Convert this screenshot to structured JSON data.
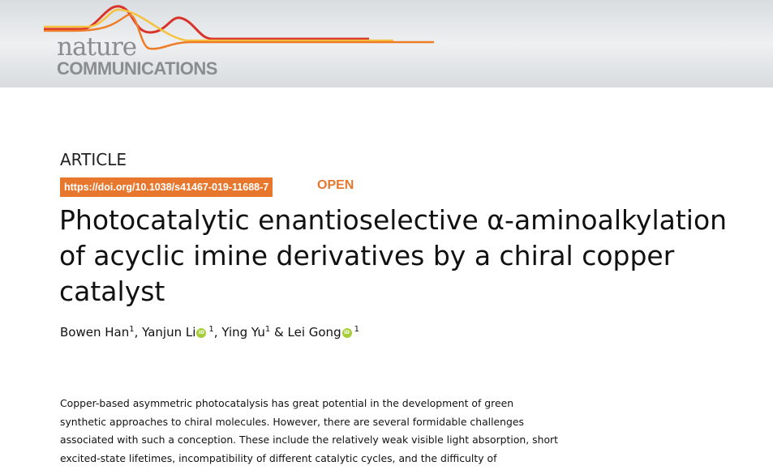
{
  "journal": {
    "name_top": "nature",
    "name_bottom": "COMMUNICATIONS",
    "colors": {
      "red": "#d9342b",
      "orange": "#ee7d2a",
      "yellow": "#f6c23e"
    }
  },
  "article": {
    "type": "ARTICLE",
    "doi": "https://doi.org/10.1038/s41467-019-11688-7",
    "access": "OPEN",
    "accent": "#e8772e",
    "title": "Photocatalytic enantioselective α-aminoalkylation of acyclic imine derivatives by a chiral copper catalyst",
    "authors": [
      {
        "name": "Bowen Han",
        "aff": "1",
        "orcid": false
      },
      {
        "name": "Yanjun Li",
        "aff": "1",
        "orcid": true
      },
      {
        "name": "Ying Yu",
        "aff": "1",
        "orcid": false
      },
      {
        "name": "Lei Gong",
        "aff": "1",
        "orcid": true
      }
    ],
    "orcid_label": "iD",
    "sep1": ", ",
    "sep2": ", ",
    "sep3": " & ",
    "abstract": "Copper-based asymmetric photocatalysis has great potential in the development of green synthetic approaches to chiral molecules. However, there are several formidable challenges associated with such a conception. These include the relatively weak visible light absorption, short excited-state lifetimes, incompatibility of different catalytic cycles, and the difficulty of"
  }
}
